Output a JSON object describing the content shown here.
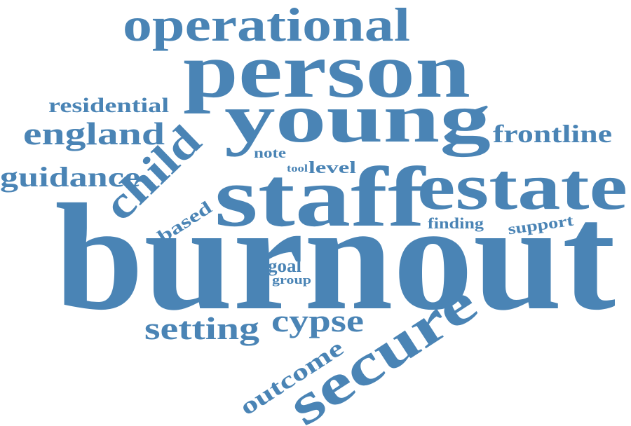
{
  "colors": {
    "word": "#4a84b5",
    "background": "#ffffff"
  },
  "words": [
    {
      "text": "burnout"
    },
    {
      "text": "staff"
    },
    {
      "text": "person"
    },
    {
      "text": "young"
    },
    {
      "text": "estate"
    },
    {
      "text": "secure"
    },
    {
      "text": "operational"
    },
    {
      "text": "child"
    },
    {
      "text": "england"
    },
    {
      "text": "guidance"
    },
    {
      "text": "residential"
    },
    {
      "text": "frontline"
    },
    {
      "text": "setting"
    },
    {
      "text": "cypse"
    },
    {
      "text": "outcome"
    },
    {
      "text": "based"
    },
    {
      "text": "note"
    },
    {
      "text": "tool"
    },
    {
      "text": "level"
    },
    {
      "text": "finding"
    },
    {
      "text": "support"
    },
    {
      "text": "goal"
    },
    {
      "text": "group"
    }
  ]
}
